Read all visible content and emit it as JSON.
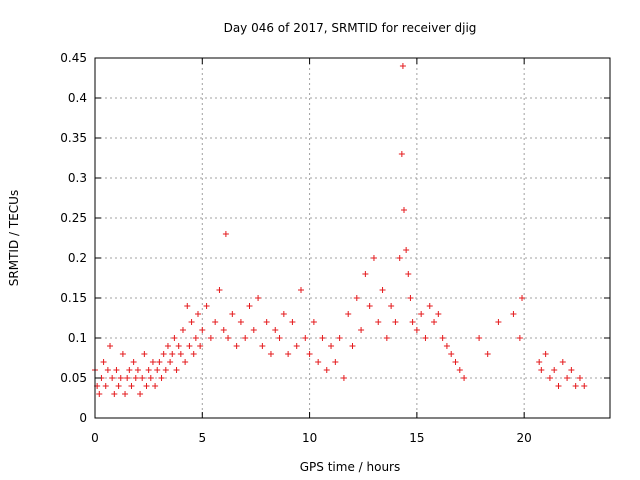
{
  "chart_data": {
    "type": "scatter",
    "title": "Day 046 of 2017, SRMTID for receiver djig",
    "xlabel": "GPS time / hours",
    "ylabel": "SRMTID / TECUs",
    "xlim": [
      0,
      24
    ],
    "ylim": [
      0,
      0.45
    ],
    "x_ticks": [
      0,
      5,
      10,
      15,
      20
    ],
    "x_tick_labels": [
      "0",
      "5",
      "10",
      "15",
      "20"
    ],
    "y_ticks": [
      0,
      0.05,
      0.1,
      0.15,
      0.2,
      0.25,
      0.3,
      0.35,
      0.4,
      0.45
    ],
    "y_tick_labels": [
      "0",
      "0.05",
      "0.1",
      "0.15",
      "0.2",
      "0.25",
      "0.3",
      "0.35",
      "0.4",
      "0.45"
    ],
    "grid": true,
    "marker": "+",
    "series": [
      {
        "name": "SRMTID",
        "color": "#e41a1c",
        "points": [
          [
            0.0,
            0.06
          ],
          [
            0.1,
            0.04
          ],
          [
            0.2,
            0.03
          ],
          [
            0.3,
            0.05
          ],
          [
            0.4,
            0.07
          ],
          [
            0.5,
            0.04
          ],
          [
            0.6,
            0.06
          ],
          [
            0.7,
            0.09
          ],
          [
            0.8,
            0.05
          ],
          [
            0.9,
            0.03
          ],
          [
            1.0,
            0.06
          ],
          [
            1.1,
            0.04
          ],
          [
            1.2,
            0.05
          ],
          [
            1.3,
            0.08
          ],
          [
            1.4,
            0.03
          ],
          [
            1.5,
            0.05
          ],
          [
            1.6,
            0.06
          ],
          [
            1.7,
            0.04
          ],
          [
            1.8,
            0.07
          ],
          [
            1.9,
            0.05
          ],
          [
            2.0,
            0.06
          ],
          [
            2.1,
            0.03
          ],
          [
            2.2,
            0.05
          ],
          [
            2.3,
            0.08
          ],
          [
            2.4,
            0.04
          ],
          [
            2.5,
            0.06
          ],
          [
            2.6,
            0.05
          ],
          [
            2.7,
            0.07
          ],
          [
            2.8,
            0.04
          ],
          [
            2.9,
            0.06
          ],
          [
            3.0,
            0.07
          ],
          [
            3.1,
            0.05
          ],
          [
            3.2,
            0.08
          ],
          [
            3.3,
            0.06
          ],
          [
            3.4,
            0.09
          ],
          [
            3.5,
            0.07
          ],
          [
            3.6,
            0.08
          ],
          [
            3.7,
            0.1
          ],
          [
            3.8,
            0.06
          ],
          [
            3.9,
            0.09
          ],
          [
            4.0,
            0.08
          ],
          [
            4.1,
            0.11
          ],
          [
            4.2,
            0.07
          ],
          [
            4.3,
            0.14
          ],
          [
            4.4,
            0.09
          ],
          [
            4.5,
            0.12
          ],
          [
            4.6,
            0.08
          ],
          [
            4.7,
            0.1
          ],
          [
            4.8,
            0.13
          ],
          [
            4.9,
            0.09
          ],
          [
            5.0,
            0.11
          ],
          [
            5.2,
            0.14
          ],
          [
            5.4,
            0.1
          ],
          [
            5.6,
            0.12
          ],
          [
            5.8,
            0.16
          ],
          [
            6.0,
            0.11
          ],
          [
            6.1,
            0.23
          ],
          [
            6.2,
            0.1
          ],
          [
            6.4,
            0.13
          ],
          [
            6.6,
            0.09
          ],
          [
            6.8,
            0.12
          ],
          [
            7.0,
            0.1
          ],
          [
            7.2,
            0.14
          ],
          [
            7.4,
            0.11
          ],
          [
            7.6,
            0.15
          ],
          [
            7.8,
            0.09
          ],
          [
            8.0,
            0.12
          ],
          [
            8.2,
            0.08
          ],
          [
            8.4,
            0.11
          ],
          [
            8.6,
            0.1
          ],
          [
            8.8,
            0.13
          ],
          [
            9.0,
            0.08
          ],
          [
            9.2,
            0.12
          ],
          [
            9.4,
            0.09
          ],
          [
            9.6,
            0.16
          ],
          [
            9.8,
            0.1
          ],
          [
            10.0,
            0.08
          ],
          [
            10.2,
            0.12
          ],
          [
            10.4,
            0.07
          ],
          [
            10.6,
            0.1
          ],
          [
            10.8,
            0.06
          ],
          [
            11.0,
            0.09
          ],
          [
            11.2,
            0.07
          ],
          [
            11.4,
            0.1
          ],
          [
            11.6,
            0.05
          ],
          [
            11.8,
            0.13
          ],
          [
            12.0,
            0.09
          ],
          [
            12.2,
            0.15
          ],
          [
            12.4,
            0.11
          ],
          [
            12.6,
            0.18
          ],
          [
            12.8,
            0.14
          ],
          [
            13.0,
            0.2
          ],
          [
            13.2,
            0.12
          ],
          [
            13.4,
            0.16
          ],
          [
            13.6,
            0.1
          ],
          [
            13.8,
            0.14
          ],
          [
            14.0,
            0.12
          ],
          [
            14.2,
            0.2
          ],
          [
            14.3,
            0.33
          ],
          [
            14.35,
            0.44
          ],
          [
            14.4,
            0.26
          ],
          [
            14.5,
            0.21
          ],
          [
            14.6,
            0.18
          ],
          [
            14.7,
            0.15
          ],
          [
            14.8,
            0.12
          ],
          [
            15.0,
            0.11
          ],
          [
            15.2,
            0.13
          ],
          [
            15.4,
            0.1
          ],
          [
            15.6,
            0.14
          ],
          [
            15.8,
            0.12
          ],
          [
            16.0,
            0.13
          ],
          [
            16.2,
            0.1
          ],
          [
            16.4,
            0.09
          ],
          [
            16.6,
            0.08
          ],
          [
            16.8,
            0.07
          ],
          [
            17.0,
            0.06
          ],
          [
            17.2,
            0.05
          ],
          [
            17.9,
            0.1
          ],
          [
            18.3,
            0.08
          ],
          [
            18.8,
            0.12
          ],
          [
            19.5,
            0.13
          ],
          [
            19.8,
            0.1
          ],
          [
            19.9,
            0.15
          ],
          [
            20.7,
            0.07
          ],
          [
            20.8,
            0.06
          ],
          [
            21.0,
            0.08
          ],
          [
            21.2,
            0.05
          ],
          [
            21.4,
            0.06
          ],
          [
            21.6,
            0.04
          ],
          [
            21.8,
            0.07
          ],
          [
            22.0,
            0.05
          ],
          [
            22.2,
            0.06
          ],
          [
            22.4,
            0.04
          ],
          [
            22.6,
            0.05
          ],
          [
            22.8,
            0.04
          ]
        ]
      }
    ]
  }
}
